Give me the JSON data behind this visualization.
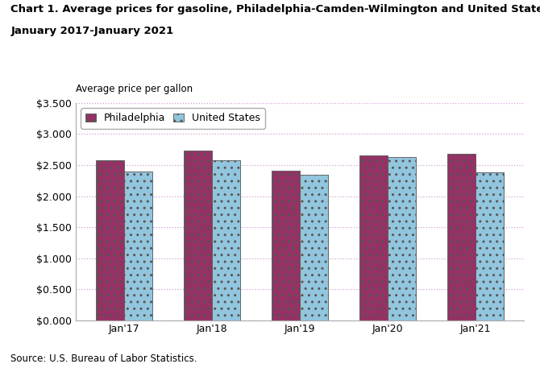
{
  "title_line1": "Chart 1. Average prices for gasoline, Philadelphia-Camden-Wilmington and United States,",
  "title_line2": "January 2017-January 2021",
  "ylabel": "Average price per gallon",
  "source": "Source: U.S. Bureau of Labor Statistics.",
  "categories": [
    "Jan'17",
    "Jan'18",
    "Jan'19",
    "Jan'20",
    "Jan'21"
  ],
  "philadelphia": [
    2.579,
    2.735,
    2.405,
    2.658,
    2.685
  ],
  "us": [
    2.391,
    2.584,
    2.347,
    2.626,
    2.384
  ],
  "philadelphia_color": "#943265",
  "us_color": "#92C5DE",
  "bar_edge_color": "#555555",
  "grid_color": "#D0A0D0",
  "ylim": [
    0.0,
    3.5
  ],
  "yticks": [
    0.0,
    0.5,
    1.0,
    1.5,
    2.0,
    2.5,
    3.0,
    3.5
  ],
  "legend_labels": [
    "Philadelphia",
    "United States"
  ],
  "bar_width": 0.32
}
